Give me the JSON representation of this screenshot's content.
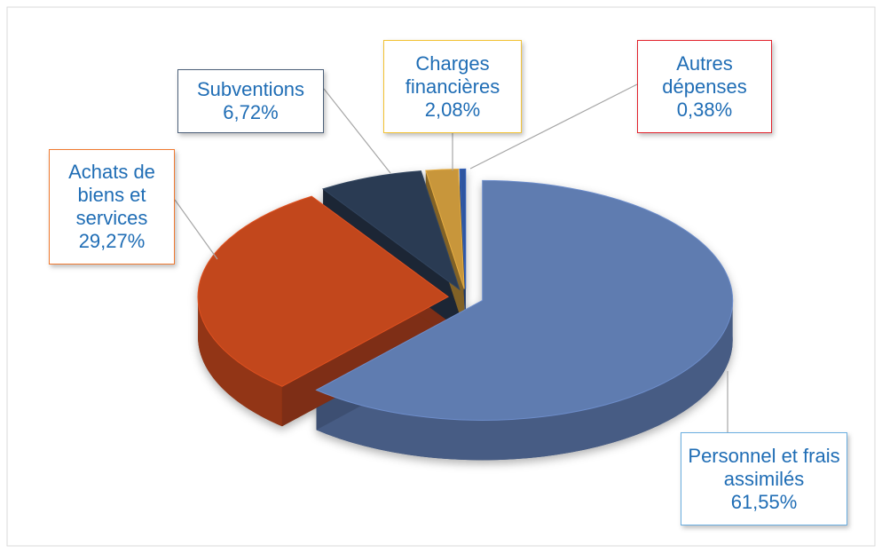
{
  "chart_data": {
    "type": "pie3d",
    "categories": [
      "Personnel et frais assimilés",
      "Achats de biens et services",
      "Subventions",
      "Charges financières",
      "Autres dépenses"
    ],
    "values": [
      61.55,
      29.27,
      6.72,
      2.08,
      0.38
    ],
    "value_labels": [
      "61,55%",
      "29,27%",
      "6,72%",
      "2,08%",
      "0,38%"
    ],
    "colors": [
      "#5f7bb0",
      "#c2461c",
      "#2b3b52",
      "#c8963a",
      "#2d55a0"
    ],
    "label_borders": [
      "#6aaee0",
      "#f07a30",
      "#4c6079",
      "#f2c232",
      "#e2232c"
    ]
  }
}
